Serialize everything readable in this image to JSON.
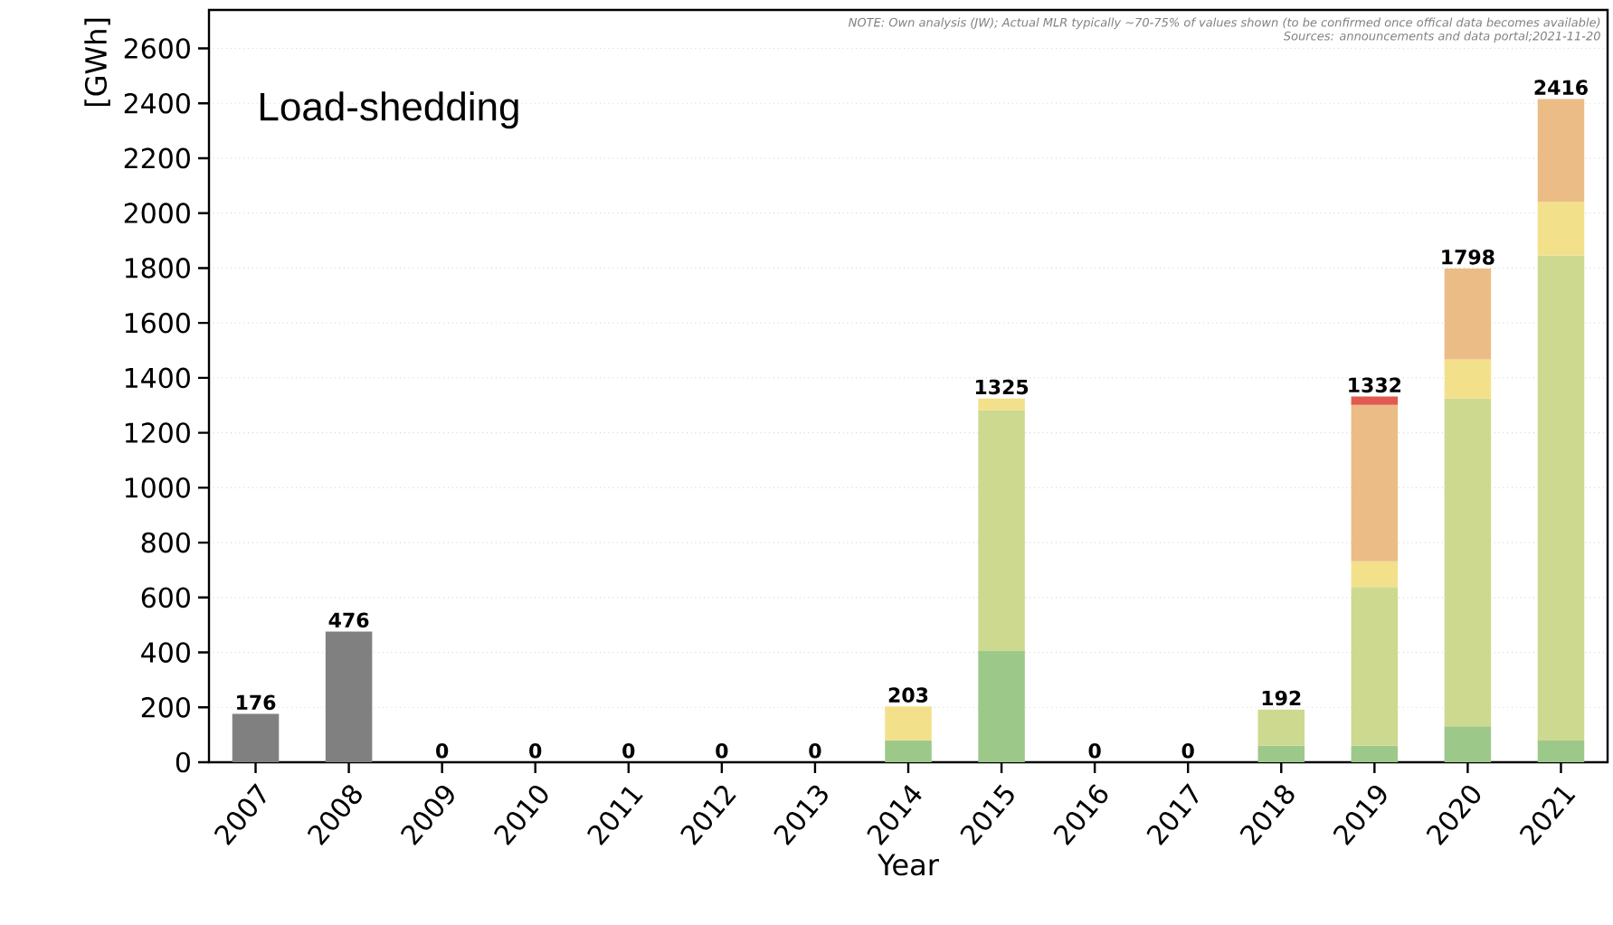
{
  "chart_data": {
    "type": "bar",
    "stacked": true,
    "title": "Load-shedding",
    "xlabel": "Year",
    "ylabel": "[GWh]",
    "annotations": [
      "NOTE: Own analysis (JW); Actual MLR typically ~70-75% of values shown (to be confirmed once offical data becomes available)",
      "Sources: announcements and data portal;2021-11-20"
    ],
    "categories": [
      "2007",
      "2008",
      "2009",
      "2010",
      "2011",
      "2012",
      "2013",
      "2014",
      "2015",
      "2016",
      "2017",
      "2018",
      "2019",
      "2020",
      "2021"
    ],
    "series": [
      {
        "color": "#808080",
        "values": [
          176,
          476,
          null,
          null,
          null,
          null,
          null,
          null,
          null,
          null,
          null,
          null,
          null,
          null,
          null
        ]
      },
      {
        "color": "#9cc98a",
        "values": [
          null,
          null,
          null,
          null,
          null,
          null,
          null,
          80,
          405,
          null,
          null,
          60,
          60,
          131,
          79
        ]
      },
      {
        "color": "#cdd98f",
        "values": [
          null,
          null,
          null,
          null,
          null,
          null,
          null,
          null,
          878,
          null,
          null,
          132,
          578,
          1194,
          1767
        ]
      },
      {
        "color": "#f3e08a",
        "values": [
          null,
          null,
          null,
          null,
          null,
          null,
          null,
          123,
          42,
          null,
          null,
          null,
          94,
          142,
          195
        ]
      },
      {
        "color": "#ecbc86",
        "values": [
          null,
          null,
          null,
          null,
          null,
          null,
          null,
          null,
          null,
          null,
          null,
          null,
          570,
          331,
          375
        ]
      },
      {
        "color": "#e05a50",
        "values": [
          null,
          null,
          null,
          null,
          null,
          null,
          null,
          null,
          null,
          null,
          null,
          null,
          30,
          null,
          null
        ]
      }
    ],
    "totals": [
      "176",
      "476",
      "0",
      "0",
      "0",
      "0",
      "0",
      "203",
      "1325",
      "0",
      "0",
      "192",
      "1332",
      "1798",
      "2416"
    ],
    "ylim": [
      0,
      2740
    ],
    "yticks": [
      0,
      200,
      400,
      600,
      800,
      1000,
      1200,
      1400,
      1600,
      1800,
      2000,
      2200,
      2400,
      2600
    ],
    "grid": "y"
  }
}
